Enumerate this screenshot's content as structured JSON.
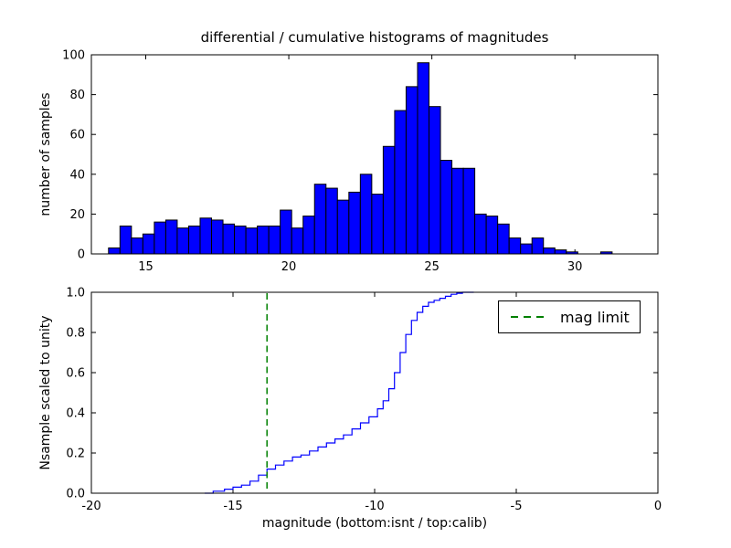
{
  "figure": {
    "background": "#ffffff",
    "title": "differential / cumulative histograms of magnitudes"
  },
  "legend": {
    "label": "mag limit",
    "line_color": "#008000"
  },
  "chart_data": [
    {
      "type": "bar",
      "title": "differential / cumulative histograms of magnitudes",
      "ylabel": "number of samples",
      "xlabel": "",
      "xlim": [
        13.1,
        32.9
      ],
      "ylim": [
        0,
        100
      ],
      "xticks": [
        15,
        20,
        25,
        30
      ],
      "yticks": [
        0,
        20,
        40,
        60,
        80,
        100
      ],
      "grid": false,
      "bar_color": "#0000ff",
      "bar_edge_color": "#000000",
      "bin_start": 13.7,
      "bin_width": 0.4,
      "values": [
        3,
        14,
        8,
        10,
        16,
        17,
        13,
        14,
        18,
        17,
        15,
        14,
        13,
        14,
        14,
        22,
        13,
        19,
        35,
        33,
        27,
        31,
        40,
        30,
        54,
        72,
        84,
        96,
        74,
        47,
        43,
        43,
        20,
        19,
        15,
        8,
        5,
        8,
        3,
        2,
        1,
        0,
        0,
        1
      ]
    },
    {
      "type": "line",
      "ylabel": "Nsample scaled to unity",
      "xlabel": "magnitude (bottom:isnt / top:calib)",
      "xlim": [
        -20,
        0
      ],
      "ylim": [
        0,
        1
      ],
      "xticks": [
        -20,
        -15,
        -10,
        -5,
        0
      ],
      "yticks": [
        "0.0",
        "0.2",
        "0.4",
        "0.6",
        "0.8",
        "1.0"
      ],
      "grid": false,
      "line_color": "#0000ff",
      "legend_position": "upper right",
      "step_points": [
        [
          -16.0,
          0.0
        ],
        [
          -15.7,
          0.01
        ],
        [
          -15.3,
          0.02
        ],
        [
          -15.0,
          0.03
        ],
        [
          -14.7,
          0.04
        ],
        [
          -14.4,
          0.06
        ],
        [
          -14.1,
          0.09
        ],
        [
          -13.8,
          0.12
        ],
        [
          -13.5,
          0.14
        ],
        [
          -13.2,
          0.16
        ],
        [
          -12.9,
          0.18
        ],
        [
          -12.6,
          0.19
        ],
        [
          -12.3,
          0.21
        ],
        [
          -12.0,
          0.23
        ],
        [
          -11.7,
          0.25
        ],
        [
          -11.4,
          0.27
        ],
        [
          -11.1,
          0.29
        ],
        [
          -10.8,
          0.32
        ],
        [
          -10.5,
          0.35
        ],
        [
          -10.2,
          0.38
        ],
        [
          -9.9,
          0.42
        ],
        [
          -9.7,
          0.46
        ],
        [
          -9.5,
          0.52
        ],
        [
          -9.3,
          0.6
        ],
        [
          -9.1,
          0.7
        ],
        [
          -8.9,
          0.79
        ],
        [
          -8.7,
          0.86
        ],
        [
          -8.5,
          0.9
        ],
        [
          -8.3,
          0.93
        ],
        [
          -8.1,
          0.95
        ],
        [
          -7.9,
          0.96
        ],
        [
          -7.7,
          0.97
        ],
        [
          -7.5,
          0.98
        ],
        [
          -7.3,
          0.99
        ],
        [
          -7.1,
          0.995
        ],
        [
          -6.9,
          1.0
        ],
        [
          -6.5,
          1.0
        ]
      ],
      "mag_limit": {
        "x": -13.8,
        "label": "mag limit",
        "color": "#008000",
        "style": "dashed"
      }
    }
  ]
}
